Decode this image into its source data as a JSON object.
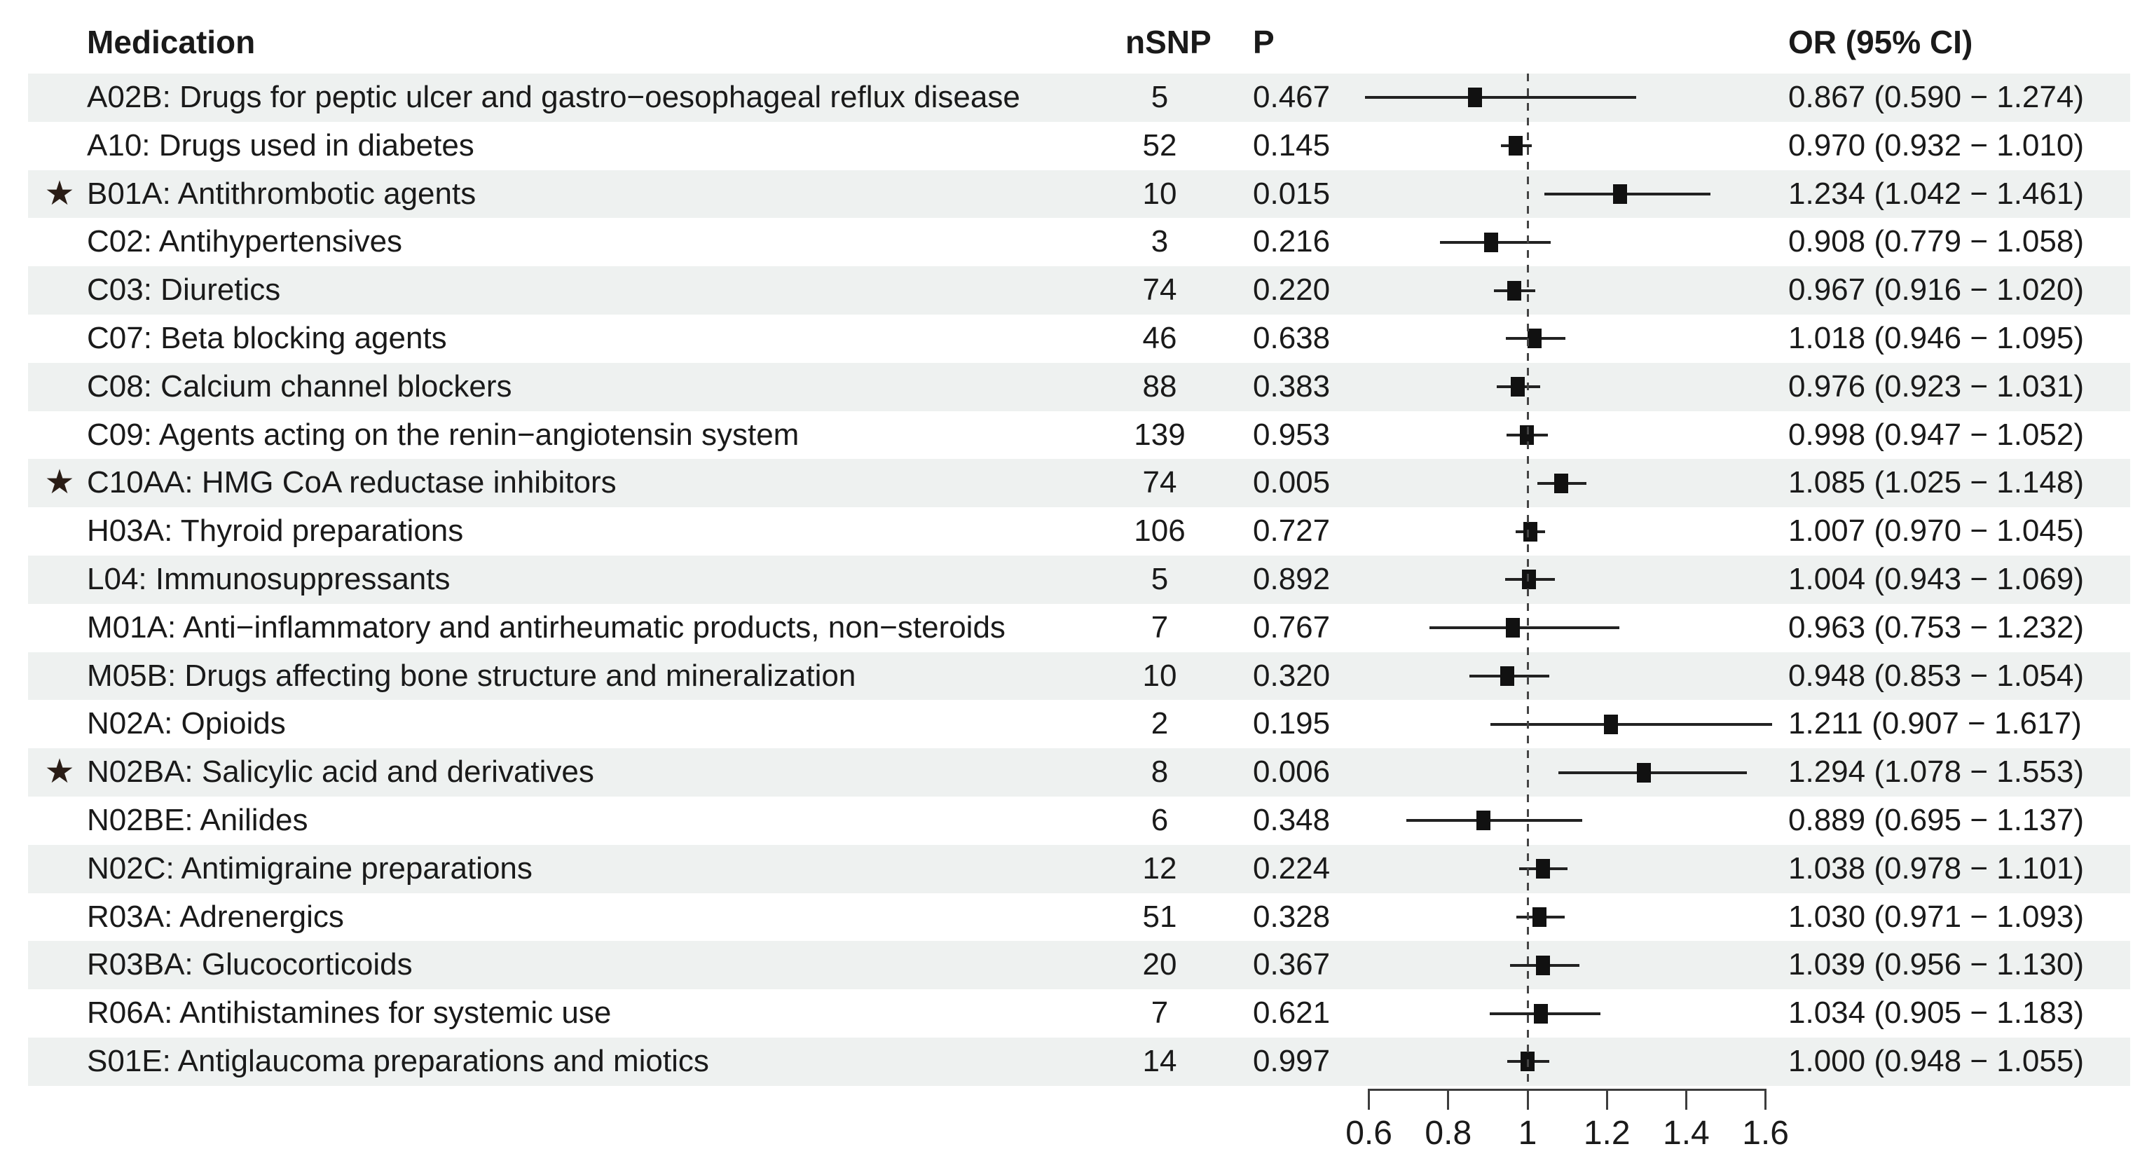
{
  "header": {
    "medication": "Medication",
    "nsnp": "nSNP",
    "p": "P",
    "or_ci": "OR (95% CI)"
  },
  "star_icon": "★",
  "colors": {
    "band": "#eef1f0",
    "text": "#1a1a1a",
    "marker": "#111111",
    "reference_line": "#444444"
  },
  "chart_data": {
    "type": "scatter",
    "subtype": "forest-plot",
    "title": "",
    "xlabel": "",
    "ylabel": "",
    "legend": "none",
    "grid": false,
    "reference_line_x": 1,
    "xlim": [
      0.55,
      1.65
    ],
    "x_axis_ticks": [
      "0.6",
      "0.8",
      "1",
      "1.2",
      "1.4",
      "1.6"
    ],
    "x_axis_tick_values": [
      0.6,
      0.8,
      1,
      1.2,
      1.4,
      1.6
    ],
    "rows": [
      {
        "star": false,
        "label": "A02B: Drugs for peptic ulcer and gastro−oesophageal reflux disease",
        "nsnp": "5",
        "p": "0.467",
        "or": 0.867,
        "ci_low": 0.59,
        "ci_high": 1.274,
        "or_ci": "0.867 (0.590 − 1.274)"
      },
      {
        "star": false,
        "label": "A10: Drugs used in diabetes",
        "nsnp": "52",
        "p": "0.145",
        "or": 0.97,
        "ci_low": 0.932,
        "ci_high": 1.01,
        "or_ci": "0.970 (0.932 − 1.010)"
      },
      {
        "star": true,
        "label": "B01A: Antithrombotic agents",
        "nsnp": "10",
        "p": "0.015",
        "or": 1.234,
        "ci_low": 1.042,
        "ci_high": 1.461,
        "or_ci": "1.234 (1.042 − 1.461)"
      },
      {
        "star": false,
        "label": "C02: Antihypertensives",
        "nsnp": "3",
        "p": "0.216",
        "or": 0.908,
        "ci_low": 0.779,
        "ci_high": 1.058,
        "or_ci": "0.908 (0.779 − 1.058)"
      },
      {
        "star": false,
        "label": "C03: Diuretics",
        "nsnp": "74",
        "p": "0.220",
        "or": 0.967,
        "ci_low": 0.916,
        "ci_high": 1.02,
        "or_ci": "0.967 (0.916 − 1.020)"
      },
      {
        "star": false,
        "label": "C07: Beta blocking agents",
        "nsnp": "46",
        "p": "0.638",
        "or": 1.018,
        "ci_low": 0.946,
        "ci_high": 1.095,
        "or_ci": "1.018 (0.946 − 1.095)"
      },
      {
        "star": false,
        "label": "C08: Calcium channel blockers",
        "nsnp": "88",
        "p": "0.383",
        "or": 0.976,
        "ci_low": 0.923,
        "ci_high": 1.031,
        "or_ci": "0.976 (0.923 − 1.031)"
      },
      {
        "star": false,
        "label": "C09: Agents acting on the renin−angiotensin system",
        "nsnp": "139",
        "p": "0.953",
        "or": 0.998,
        "ci_low": 0.947,
        "ci_high": 1.052,
        "or_ci": "0.998 (0.947 − 1.052)"
      },
      {
        "star": true,
        "label": "C10AA: HMG CoA reductase inhibitors",
        "nsnp": "74",
        "p": "0.005",
        "or": 1.085,
        "ci_low": 1.025,
        "ci_high": 1.148,
        "or_ci": "1.085 (1.025 − 1.148)"
      },
      {
        "star": false,
        "label": "H03A: Thyroid preparations",
        "nsnp": "106",
        "p": "0.727",
        "or": 1.007,
        "ci_low": 0.97,
        "ci_high": 1.045,
        "or_ci": "1.007 (0.970 − 1.045)"
      },
      {
        "star": false,
        "label": "L04: Immunosuppressants",
        "nsnp": "5",
        "p": "0.892",
        "or": 1.004,
        "ci_low": 0.943,
        "ci_high": 1.069,
        "or_ci": "1.004 (0.943 − 1.069)"
      },
      {
        "star": false,
        "label": "M01A: Anti−inflammatory and antirheumatic products, non−steroids",
        "nsnp": "7",
        "p": "0.767",
        "or": 0.963,
        "ci_low": 0.753,
        "ci_high": 1.232,
        "or_ci": "0.963 (0.753 − 1.232)"
      },
      {
        "star": false,
        "label": "M05B: Drugs affecting bone structure and mineralization",
        "nsnp": "10",
        "p": "0.320",
        "or": 0.948,
        "ci_low": 0.853,
        "ci_high": 1.054,
        "or_ci": "0.948 (0.853 − 1.054)"
      },
      {
        "star": false,
        "label": "N02A: Opioids",
        "nsnp": "2",
        "p": "0.195",
        "or": 1.211,
        "ci_low": 0.907,
        "ci_high": 1.617,
        "or_ci": "1.211 (0.907 − 1.617)"
      },
      {
        "star": true,
        "label": "N02BA: Salicylic acid and derivatives",
        "nsnp": "8",
        "p": "0.006",
        "or": 1.294,
        "ci_low": 1.078,
        "ci_high": 1.553,
        "or_ci": "1.294 (1.078 − 1.553)"
      },
      {
        "star": false,
        "label": "N02BE: Anilides",
        "nsnp": "6",
        "p": "0.348",
        "or": 0.889,
        "ci_low": 0.695,
        "ci_high": 1.137,
        "or_ci": "0.889 (0.695 − 1.137)"
      },
      {
        "star": false,
        "label": "N02C: Antimigraine preparations",
        "nsnp": "12",
        "p": "0.224",
        "or": 1.038,
        "ci_low": 0.978,
        "ci_high": 1.101,
        "or_ci": "1.038 (0.978 − 1.101)"
      },
      {
        "star": false,
        "label": "R03A: Adrenergics",
        "nsnp": "51",
        "p": "0.328",
        "or": 1.03,
        "ci_low": 0.971,
        "ci_high": 1.093,
        "or_ci": "1.030 (0.971 − 1.093)"
      },
      {
        "star": false,
        "label": "R03BA: Glucocorticoids",
        "nsnp": "20",
        "p": "0.367",
        "or": 1.039,
        "ci_low": 0.956,
        "ci_high": 1.13,
        "or_ci": "1.039 (0.956 − 1.130)"
      },
      {
        "star": false,
        "label": "R06A: Antihistamines for systemic use",
        "nsnp": "7",
        "p": "0.621",
        "or": 1.034,
        "ci_low": 0.905,
        "ci_high": 1.183,
        "or_ci": "1.034 (0.905 − 1.183)"
      },
      {
        "star": false,
        "label": "S01E: Antiglaucoma preparations and miotics",
        "nsnp": "14",
        "p": "0.997",
        "or": 1.0,
        "ci_low": 0.948,
        "ci_high": 1.055,
        "or_ci": "1.000 (0.948 − 1.055)"
      }
    ]
  }
}
